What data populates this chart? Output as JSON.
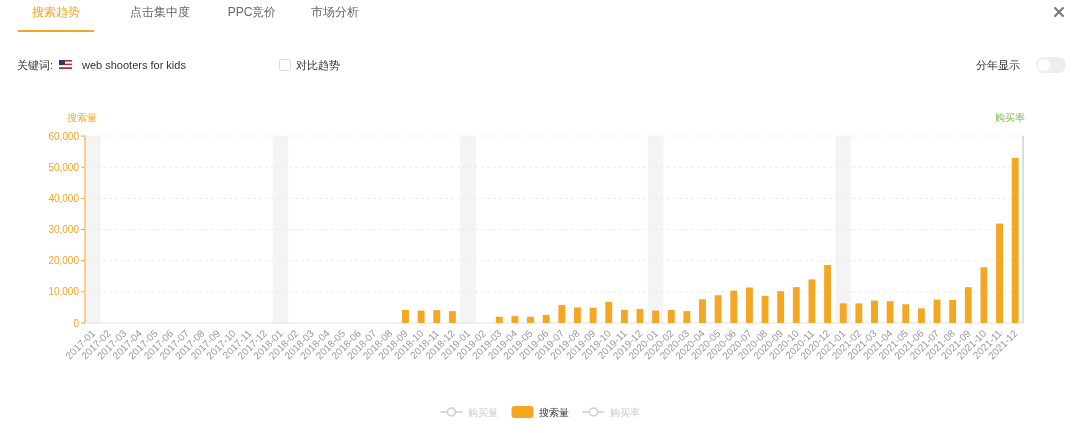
{
  "chart_data": {
    "type": "bar",
    "title": "搜索趋势",
    "ylabel": "搜索量",
    "y2label": "购买率",
    "categories": [
      "2017-01",
      "2017-02",
      "2017-03",
      "2017-04",
      "2017-05",
      "2017-06",
      "2017-07",
      "2017-08",
      "2017-09",
      "2017-10",
      "2017-11",
      "2017-12",
      "2018-01",
      "2018-02",
      "2018-03",
      "2018-04",
      "2018-05",
      "2018-06",
      "2018-07",
      "2018-08",
      "2018-09",
      "2018-10",
      "2018-11",
      "2018-12",
      "2019-01",
      "2019-02",
      "2019-03",
      "2019-04",
      "2019-05",
      "2019-06",
      "2019-07",
      "2019-08",
      "2019-09",
      "2019-10",
      "2019-11",
      "2019-12",
      "2020-01",
      "2020-02",
      "2020-03",
      "2020-04",
      "2020-05",
      "2020-06",
      "2020-07",
      "2020-08",
      "2020-09",
      "2020-10",
      "2020-11",
      "2020-12",
      "2021-01",
      "2021-02",
      "2021-03",
      "2021-04",
      "2021-05",
      "2021-06",
      "2021-07",
      "2021-08",
      "2021-09",
      "2021-10",
      "2021-11",
      "2021-12"
    ],
    "series": [
      {
        "name": "购买量",
        "type": "line",
        "marker": "circle",
        "color": "#cccccc",
        "values": [
          null,
          null,
          null,
          null,
          null,
          null,
          null,
          null,
          null,
          null,
          null,
          null,
          null,
          null,
          null,
          null,
          null,
          null,
          null,
          null,
          null,
          null,
          null,
          null,
          null,
          null,
          null,
          null,
          null,
          null,
          null,
          null,
          null,
          null,
          null,
          null,
          null,
          null,
          null,
          null,
          null,
          null,
          null,
          null,
          null,
          null,
          null,
          null,
          null,
          null,
          null,
          null,
          null,
          null,
          null,
          null,
          null,
          null,
          null,
          null
        ]
      },
      {
        "name": "搜索量",
        "color": "#f5a623",
        "values": [
          0,
          0,
          0,
          0,
          0,
          0,
          0,
          0,
          0,
          0,
          0,
          0,
          0,
          0,
          0,
          0,
          0,
          0,
          0,
          0,
          4200,
          4000,
          4100,
          3800,
          0,
          0,
          2000,
          2200,
          2000,
          2600,
          5800,
          5000,
          4900,
          6800,
          4200,
          4500,
          4000,
          4200,
          3800,
          7600,
          8900,
          10400,
          11400,
          8700,
          10200,
          11500,
          14000,
          18600,
          6300,
          6300,
          7200,
          7000,
          6000,
          4700,
          7500,
          7400,
          11500,
          17900,
          31900,
          53000
        ]
      },
      {
        "name": "购买率",
        "type": "line",
        "marker": "circle",
        "axis": "y2",
        "color": "#cccccc",
        "values": [
          null,
          null,
          null,
          null,
          null,
          null,
          null,
          null,
          null,
          null,
          null,
          null,
          null,
          null,
          null,
          null,
          null,
          null,
          null,
          null,
          null,
          null,
          null,
          null,
          null,
          null,
          null,
          null,
          null,
          null,
          null,
          null,
          null,
          null,
          null,
          null,
          null,
          null,
          null,
          null,
          null,
          null,
          null,
          null,
          null,
          null,
          null,
          null,
          null,
          null,
          null,
          null,
          null,
          null,
          null,
          null,
          null,
          null,
          null,
          null
        ]
      }
    ],
    "ylim": [
      0,
      60000
    ],
    "yticks": [
      0,
      {
        "value": 10000,
        "label": "10,000"
      },
      {
        "value": 20000,
        "label": "20,000"
      },
      {
        "value": 30000,
        "label": "30,000"
      },
      {
        "value": 40000,
        "label": "40,000"
      },
      {
        "value": 50000,
        "label": "50,000"
      },
      {
        "value": 60000,
        "label": "60,000"
      }
    ],
    "grid": "y",
    "legend": "bottom",
    "bands": [
      {
        "axis": "x",
        "from": "2017-01",
        "to": "2017-01",
        "color": "#f4f4f4"
      },
      {
        "axis": "x",
        "from": "2018-01",
        "to": "2018-01",
        "color": "#f4f4f4"
      },
      {
        "axis": "x",
        "from": "2019-01",
        "to": "2019-01",
        "color": "#f4f4f4"
      },
      {
        "axis": "x",
        "from": "2020-01",
        "to": "2020-01",
        "color": "#f4f4f4"
      },
      {
        "axis": "x",
        "from": "2021-01",
        "to": "2021-01",
        "color": "#f4f4f4"
      }
    ],
    "annotations": [
      "点击集中度",
      "PPC竞价",
      "市场分析",
      "关键词:",
      "web shooters for kids",
      "对比趋势",
      "分年显示"
    ]
  }
}
